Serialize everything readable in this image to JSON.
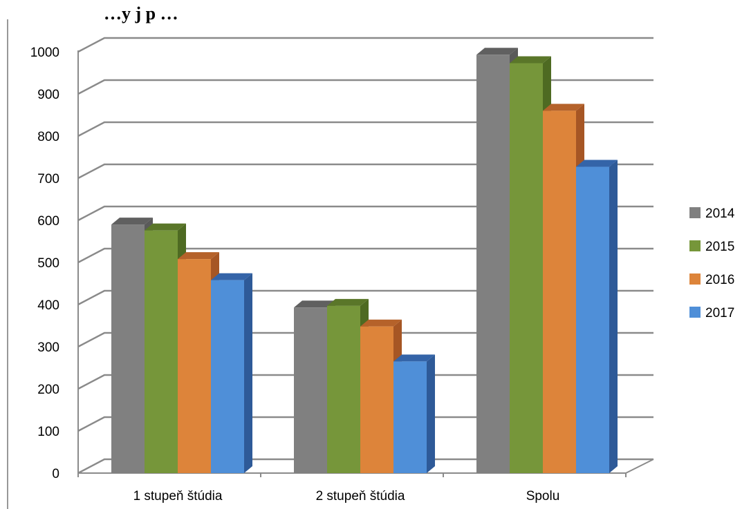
{
  "chart_data": {
    "type": "bar",
    "title": "…y j p …",
    "categories": [
      "1 stupeň štúdia",
      "2 stupeň štúdia",
      "Spolu"
    ],
    "series": [
      {
        "name": "2014",
        "values": [
          590,
          393,
          993
        ],
        "color": "#808080",
        "top_color": "#606060",
        "side_color": "#5a5a5a"
      },
      {
        "name": "2015",
        "values": [
          576,
          397,
          973
        ],
        "color": "#76963a",
        "top_color": "#5a7629",
        "side_color": "#4e6a22"
      },
      {
        "name": "2016",
        "values": [
          508,
          348,
          860
        ],
        "color": "#dd843a",
        "top_color": "#b5622a",
        "side_color": "#a65624"
      },
      {
        "name": "2017",
        "values": [
          458,
          265,
          727
        ],
        "color": "#4f8fd8",
        "top_color": "#3464a8",
        "side_color": "#2e5a98"
      }
    ],
    "yticks": [
      "0",
      "100",
      "200",
      "300",
      "400",
      "500",
      "600",
      "700",
      "800",
      "900",
      "1000"
    ],
    "ylim": [
      0,
      1000
    ],
    "grid": true,
    "legend": "right"
  }
}
